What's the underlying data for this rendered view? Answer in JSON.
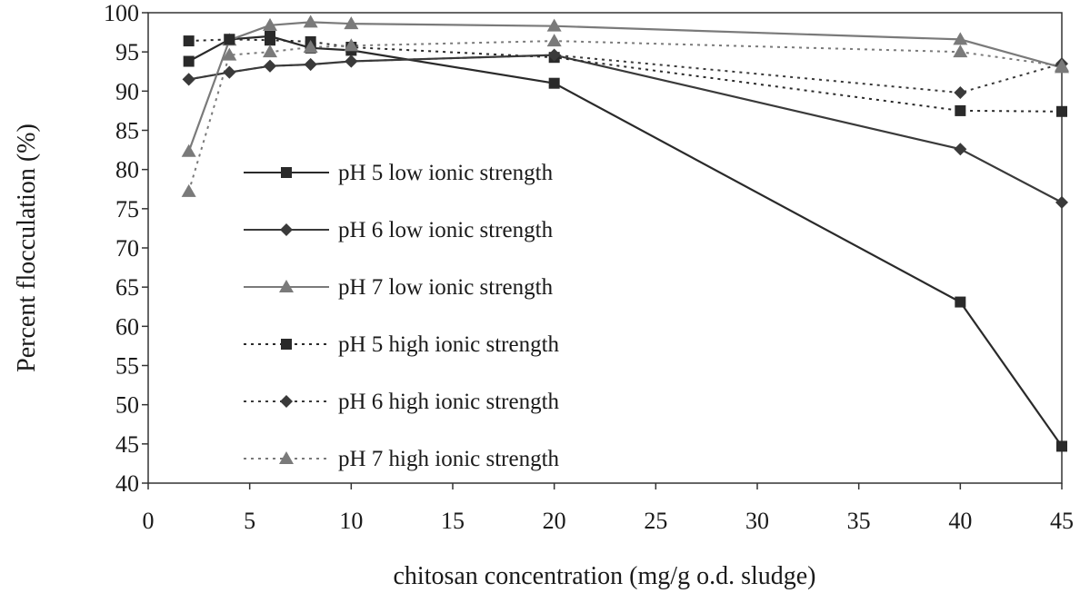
{
  "chart_data": {
    "type": "line",
    "xlabel": "chitosan concentration (mg/g o.d. sludge)",
    "ylabel": "Percent flocculation (%)",
    "xlim": [
      0,
      45
    ],
    "ylim": [
      40,
      100
    ],
    "xticks": [
      0,
      5,
      10,
      15,
      20,
      25,
      30,
      35,
      40,
      45
    ],
    "yticks": [
      40,
      45,
      50,
      55,
      60,
      65,
      70,
      75,
      80,
      85,
      90,
      95,
      100
    ],
    "grid": false,
    "legend_position": "center-left",
    "x": [
      2,
      4,
      6,
      8,
      10,
      20,
      40,
      45
    ],
    "series": [
      {
        "name": "pH 5 low ionic strength",
        "values": [
          93.8,
          96.6,
          97.0,
          95.5,
          95.2,
          91.0,
          63.1,
          44.7
        ],
        "marker": "square",
        "dash": "solid",
        "color": "#2a2a2a"
      },
      {
        "name": "pH 6 low ionic strength",
        "values": [
          91.5,
          92.4,
          93.2,
          93.4,
          93.8,
          94.6,
          82.6,
          75.8
        ],
        "marker": "diamond",
        "dash": "solid",
        "color": "#3a3a3a"
      },
      {
        "name": "pH 7 low ionic strength",
        "values": [
          82.3,
          96.5,
          98.4,
          98.8,
          98.6,
          98.3,
          96.6,
          93.0
        ],
        "marker": "triangle",
        "dash": "solid",
        "color": "#7a7a7a"
      },
      {
        "name": "pH 5 high ionic strength",
        "values": [
          96.4,
          96.6,
          96.5,
          96.3,
          95.6,
          94.3,
          87.5,
          87.4
        ],
        "marker": "square",
        "dash": "dotted",
        "color": "#2a2a2a"
      },
      {
        "name": "pH 6 high ionic strength",
        "values": [
          91.5,
          92.4,
          93.2,
          93.4,
          93.8,
          94.6,
          89.8,
          93.5
        ],
        "marker": "diamond",
        "dash": "dotted",
        "color": "#3a3a3a"
      },
      {
        "name": "pH 7 high ionic strength",
        "values": [
          77.2,
          94.6,
          95.0,
          95.6,
          95.8,
          96.4,
          95.0,
          93.2
        ],
        "marker": "triangle",
        "dash": "dotted",
        "color": "#7a7a7a"
      }
    ]
  }
}
